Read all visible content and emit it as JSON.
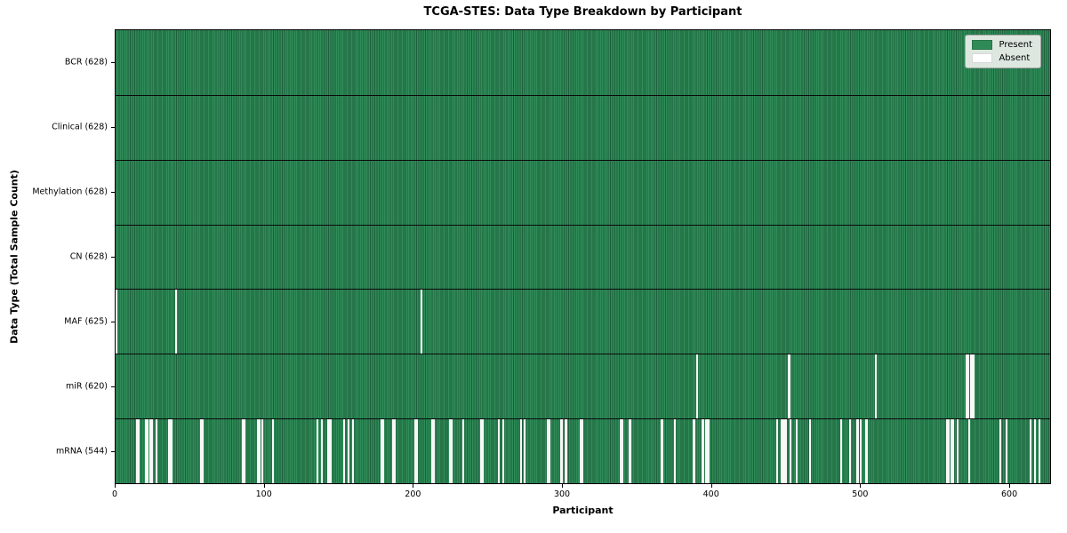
{
  "chart_data": {
    "type": "heatmap",
    "title": "TCGA-STES: Data Type Breakdown by Participant",
    "xlabel": "Participant",
    "ylabel": "Data Type (Total Sample Count)",
    "n_participants": 628,
    "x_ticks": [
      0,
      100,
      200,
      300,
      400,
      500,
      600
    ],
    "grid": false,
    "legend_position": "upper right",
    "colors": {
      "present": "#2e8b57",
      "present_edge": "#1e5f3c",
      "absent": "#f7f7f7",
      "row_separator": "#0a0a0a",
      "axes_border": "#000000",
      "legend_bg": "#dde7df"
    },
    "legend": [
      {
        "label": "Present",
        "color": "#2e8b57"
      },
      {
        "label": "Absent",
        "color": "#ffffff"
      }
    ],
    "rows": [
      {
        "label": "BCR (628)",
        "data_type": "BCR",
        "present_count": 628,
        "absent_participants": []
      },
      {
        "label": "Clinical (628)",
        "data_type": "Clinical",
        "present_count": 628,
        "absent_participants": []
      },
      {
        "label": "Methylation (628)",
        "data_type": "Methylation",
        "present_count": 628,
        "absent_participants": []
      },
      {
        "label": "CN (628)",
        "data_type": "CN",
        "present_count": 628,
        "absent_participants": []
      },
      {
        "label": "MAF (625)",
        "data_type": "MAF",
        "present_count": 625,
        "absent_participants": [
          0,
          40,
          205
        ]
      },
      {
        "label": "miR (620)",
        "data_type": "miR",
        "present_count": 620,
        "absent_participants": [
          390,
          452,
          510,
          571,
          572,
          574,
          575,
          576
        ]
      },
      {
        "label": "mRNA (544)",
        "data_type": "mRNA",
        "present_count": 544,
        "absent_participants": [
          14,
          15,
          20,
          21,
          23,
          24,
          27,
          35,
          36,
          37,
          57,
          58,
          85,
          86,
          95,
          96,
          98,
          105,
          135,
          138,
          142,
          143,
          144,
          153,
          156,
          159,
          178,
          179,
          186,
          187,
          201,
          202,
          212,
          213,
          224,
          225,
          233,
          245,
          246,
          257,
          260,
          272,
          274,
          290,
          291,
          299,
          302,
          312,
          313,
          339,
          340,
          345,
          366,
          367,
          375,
          388,
          394,
          396,
          397,
          398,
          444,
          447,
          448,
          449,
          450,
          453,
          457,
          466,
          487,
          493,
          498,
          500,
          504,
          558,
          559,
          561,
          562,
          565,
          573,
          594,
          598,
          614,
          617,
          620
        ]
      }
    ]
  }
}
